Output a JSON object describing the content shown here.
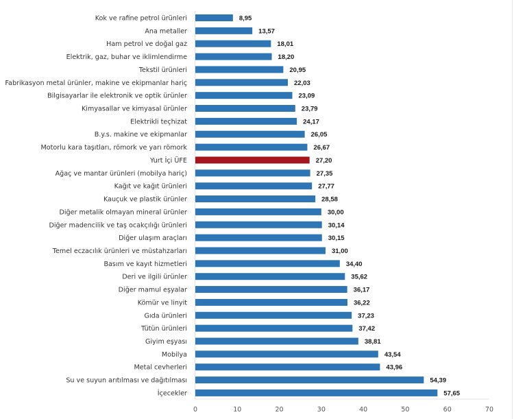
{
  "chart_data": {
    "type": "bar",
    "orientation": "horizontal",
    "title": "",
    "xlabel": "",
    "ylabel": "",
    "xlim": [
      0,
      70
    ],
    "x_ticks": [
      "0",
      "10",
      "20",
      "30",
      "40",
      "50",
      "60",
      "70"
    ],
    "grid": false,
    "legend": "none",
    "colors": {
      "default": "#2e75b6",
      "highlight": "#a6151c"
    },
    "highlight_category": "Yurt İçi ÜFE",
    "categories": [
      "Kok ve rafine petrol ürünleri",
      "Ana metaller",
      "Ham petrol ve doğal gaz",
      "Elektrik, gaz, buhar ve iklimlendirme",
      "Tekstil ürünleri",
      "Fabrikasyon metal ürünler, makine ve ekipmanlar hariç",
      "Bilgisayarlar ile elektronik ve optik ürünler",
      "Kimyasallar ve kimyasal ürünler",
      "Elektrikli teçhizat",
      "B.y.s. makine ve ekipmanlar",
      "Motorlu kara taşıtları, römork ve yarı römork",
      "Yurt İçi ÜFE",
      "Ağaç ve mantar ürünleri (mobilya hariç)",
      "Kağıt ve kağıt ürünleri",
      "Kauçuk ve plastik ürünler",
      "Diğer metalik olmayan mineral ürünler",
      "Diğer madencilik ve taş ocakçılığı ürünleri",
      "Diğer ulaşım araçları",
      "Temel eczacılık ürünleri ve müstahzarları",
      "Basım ve kayıt hizmetleri",
      "Deri ve ilgili ürünler",
      "Diğer mamul eşyalar",
      "Kömür ve linyit",
      "Gıda ürünleri",
      "Tütün ürünleri",
      "Giyim eşyası",
      "Mobilya",
      "Metal cevherleri",
      "Su ve suyun arıtılması ve dağıtılması",
      "İçecekler"
    ],
    "values": [
      8.95,
      13.57,
      18.01,
      18.2,
      20.95,
      22.03,
      23.09,
      23.79,
      24.17,
      26.05,
      26.67,
      27.2,
      27.35,
      27.77,
      28.58,
      30.0,
      30.14,
      30.15,
      31.0,
      34.4,
      35.62,
      36.17,
      36.22,
      37.23,
      37.42,
      38.81,
      43.54,
      43.96,
      54.39,
      57.65
    ],
    "value_labels": [
      "8,95",
      "13,57",
      "18,01",
      "18,20",
      "20,95",
      "22,03",
      "23,09",
      "23,79",
      "24,17",
      "26,05",
      "26,67",
      "27,20",
      "27,35",
      "27,77",
      "28,58",
      "30,00",
      "30,14",
      "30,15",
      "31,00",
      "34,40",
      "35,62",
      "36,17",
      "36,22",
      "37,23",
      "37,42",
      "38,81",
      "43,54",
      "43,96",
      "54,39",
      "57,65"
    ]
  }
}
